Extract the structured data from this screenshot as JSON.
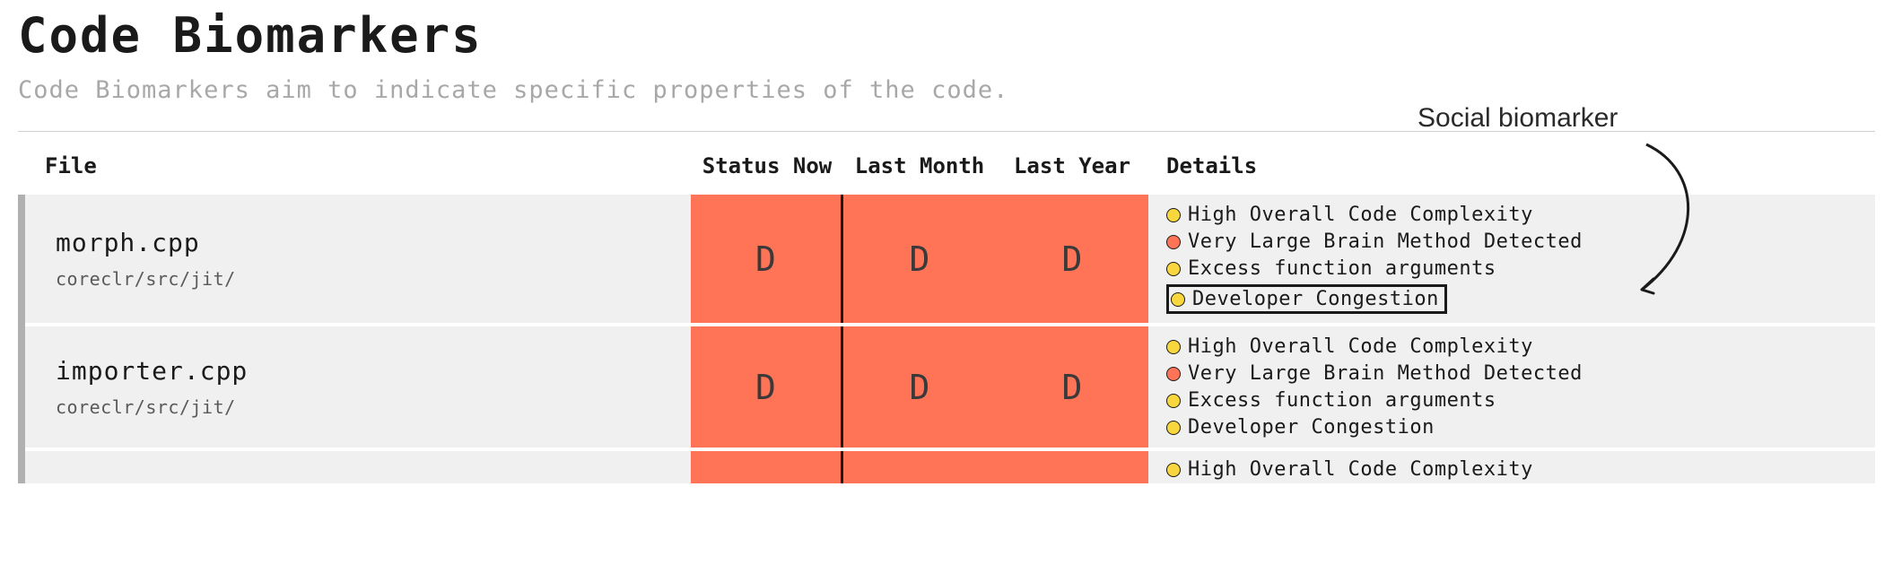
{
  "header": {
    "title": "Code Biomarkers",
    "subtitle": "Code Biomarkers aim to indicate specific properties of the code."
  },
  "annotation": {
    "label": "Social biomarker"
  },
  "colors": {
    "grade_bg_d": "#ff7457",
    "dot_yellow": "#f7d63e",
    "dot_red": "#ff7457"
  },
  "columns": {
    "file": "File",
    "status_now": "Status Now",
    "last_month": "Last Month",
    "last_year": "Last Year",
    "details": "Details"
  },
  "rows": [
    {
      "file": {
        "name": "morph.cpp",
        "path": "coreclr/src/jit/"
      },
      "status_now": "D",
      "last_month": "D",
      "last_year": "D",
      "details": [
        {
          "severity": "yellow",
          "label": "High Overall Code Complexity",
          "boxed": false
        },
        {
          "severity": "red",
          "label": "Very Large Brain Method Detected",
          "boxed": false
        },
        {
          "severity": "yellow",
          "label": "Excess function arguments",
          "boxed": false
        },
        {
          "severity": "yellow",
          "label": "Developer Congestion",
          "boxed": true
        }
      ]
    },
    {
      "file": {
        "name": "importer.cpp",
        "path": "coreclr/src/jit/"
      },
      "status_now": "D",
      "last_month": "D",
      "last_year": "D",
      "details": [
        {
          "severity": "yellow",
          "label": "High Overall Code Complexity",
          "boxed": false
        },
        {
          "severity": "red",
          "label": "Very Large Brain Method Detected",
          "boxed": false
        },
        {
          "severity": "yellow",
          "label": "Excess function arguments",
          "boxed": false
        },
        {
          "severity": "yellow",
          "label": "Developer Congestion",
          "boxed": false
        }
      ]
    },
    {
      "file": {
        "name": "",
        "path": ""
      },
      "status_now": "",
      "last_month": "",
      "last_year": "",
      "details": [
        {
          "severity": "yellow",
          "label": "High Overall Code Complexity",
          "boxed": false
        }
      ],
      "partial": true
    }
  ]
}
